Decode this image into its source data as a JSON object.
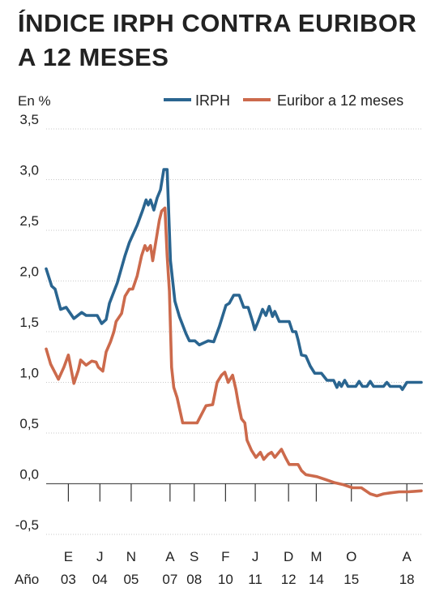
{
  "chart_data": {
    "type": "line",
    "title": "ÍNDICE IRPH CONTRA EURIBOR A 12 MESES",
    "ylabel": "En %",
    "xlabel": "Año",
    "ylim": [
      -0.5,
      3.5
    ],
    "xlim": [
      2002.0,
      2018.9
    ],
    "yticks": [
      {
        "value": 3.5,
        "label": "3,5"
      },
      {
        "value": 3.0,
        "label": "3,0"
      },
      {
        "value": 2.5,
        "label": "2,5"
      },
      {
        "value": 2.0,
        "label": "2,0"
      },
      {
        "value": 1.5,
        "label": "1,5"
      },
      {
        "value": 1.0,
        "label": "1,0"
      },
      {
        "value": 0.5,
        "label": "0,5"
      },
      {
        "value": 0.0,
        "label": "0,0"
      },
      {
        "value": -0.5,
        "label": "-0,5"
      }
    ],
    "xticks": [
      {
        "x": 2003.0,
        "month": "E",
        "year": "03"
      },
      {
        "x": 2004.42,
        "month": "J",
        "year": "04"
      },
      {
        "x": 2005.83,
        "month": "N",
        "year": "05"
      },
      {
        "x": 2007.58,
        "month": "A",
        "year": "07"
      },
      {
        "x": 2008.67,
        "month": "S",
        "year": "08"
      },
      {
        "x": 2010.08,
        "month": "F",
        "year": "10"
      },
      {
        "x": 2011.42,
        "month": "J",
        "year": "11"
      },
      {
        "x": 2012.92,
        "month": "D",
        "year": "12"
      },
      {
        "x": 2014.17,
        "month": "M",
        "year": "14"
      },
      {
        "x": 2015.75,
        "month": "O",
        "year": "15"
      },
      {
        "x": 2018.25,
        "month": "A",
        "year": "18"
      }
    ],
    "grid": "horizontal",
    "legend": "top-right",
    "series": [
      {
        "name": "IRPH",
        "color": "#2a6590",
        "points": [
          [
            2002.0,
            2.12
          ],
          [
            2002.25,
            1.95
          ],
          [
            2002.4,
            1.92
          ],
          [
            2002.65,
            1.72
          ],
          [
            2002.9,
            1.74
          ],
          [
            2003.25,
            1.63
          ],
          [
            2003.6,
            1.69
          ],
          [
            2003.8,
            1.66
          ],
          [
            2004.0,
            1.66
          ],
          [
            2004.3,
            1.66
          ],
          [
            2004.5,
            1.58
          ],
          [
            2004.7,
            1.62
          ],
          [
            2004.85,
            1.78
          ],
          [
            2005.2,
            1.98
          ],
          [
            2005.55,
            2.25
          ],
          [
            2005.75,
            2.38
          ],
          [
            2006.1,
            2.55
          ],
          [
            2006.35,
            2.7
          ],
          [
            2006.5,
            2.8
          ],
          [
            2006.6,
            2.75
          ],
          [
            2006.7,
            2.8
          ],
          [
            2006.85,
            2.7
          ],
          [
            2007.0,
            2.82
          ],
          [
            2007.15,
            2.9
          ],
          [
            2007.3,
            3.1
          ],
          [
            2007.45,
            3.1
          ],
          [
            2007.6,
            2.2
          ],
          [
            2007.8,
            1.8
          ],
          [
            2008.0,
            1.65
          ],
          [
            2008.3,
            1.48
          ],
          [
            2008.45,
            1.41
          ],
          [
            2008.7,
            1.41
          ],
          [
            2008.9,
            1.37
          ],
          [
            2009.3,
            1.41
          ],
          [
            2009.55,
            1.4
          ],
          [
            2009.8,
            1.55
          ],
          [
            2010.1,
            1.76
          ],
          [
            2010.25,
            1.78
          ],
          [
            2010.45,
            1.86
          ],
          [
            2010.7,
            1.86
          ],
          [
            2010.9,
            1.74
          ],
          [
            2011.1,
            1.74
          ],
          [
            2011.3,
            1.6
          ],
          [
            2011.4,
            1.52
          ],
          [
            2011.55,
            1.6
          ],
          [
            2011.75,
            1.72
          ],
          [
            2011.9,
            1.66
          ],
          [
            2012.05,
            1.75
          ],
          [
            2012.2,
            1.65
          ],
          [
            2012.3,
            1.7
          ],
          [
            2012.5,
            1.6
          ],
          [
            2012.65,
            1.6
          ],
          [
            2012.95,
            1.6
          ],
          [
            2013.1,
            1.5
          ],
          [
            2013.25,
            1.5
          ],
          [
            2013.35,
            1.42
          ],
          [
            2013.5,
            1.27
          ],
          [
            2013.7,
            1.26
          ],
          [
            2013.9,
            1.16
          ],
          [
            2014.1,
            1.09
          ],
          [
            2014.4,
            1.09
          ],
          [
            2014.65,
            1.02
          ],
          [
            2014.95,
            1.02
          ],
          [
            2015.1,
            0.95
          ],
          [
            2015.2,
            1.0
          ],
          [
            2015.3,
            0.96
          ],
          [
            2015.45,
            1.02
          ],
          [
            2015.6,
            0.96
          ],
          [
            2015.8,
            0.96
          ],
          [
            2015.95,
            0.96
          ],
          [
            2016.1,
            1.01
          ],
          [
            2016.25,
            0.96
          ],
          [
            2016.45,
            0.96
          ],
          [
            2016.6,
            1.01
          ],
          [
            2016.75,
            0.96
          ],
          [
            2017.0,
            0.96
          ],
          [
            2017.2,
            0.96
          ],
          [
            2017.35,
            1.0
          ],
          [
            2017.5,
            0.96
          ],
          [
            2017.75,
            0.96
          ],
          [
            2017.95,
            0.96
          ],
          [
            2018.05,
            0.93
          ],
          [
            2018.25,
            1.0
          ],
          [
            2018.9,
            1.0
          ]
        ]
      },
      {
        "name": "Euribor a 12 meses",
        "color": "#cc6a4c",
        "points": [
          [
            2002.0,
            1.33
          ],
          [
            2002.2,
            1.18
          ],
          [
            2002.55,
            1.03
          ],
          [
            2002.8,
            1.15
          ],
          [
            2003.0,
            1.27
          ],
          [
            2003.25,
            0.99
          ],
          [
            2003.45,
            1.12
          ],
          [
            2003.55,
            1.22
          ],
          [
            2003.8,
            1.17
          ],
          [
            2004.05,
            1.21
          ],
          [
            2004.25,
            1.2
          ],
          [
            2004.35,
            1.15
          ],
          [
            2004.55,
            1.11
          ],
          [
            2004.7,
            1.3
          ],
          [
            2004.9,
            1.4
          ],
          [
            2005.05,
            1.5
          ],
          [
            2005.15,
            1.6
          ],
          [
            2005.4,
            1.68
          ],
          [
            2005.55,
            1.85
          ],
          [
            2005.75,
            1.92
          ],
          [
            2005.9,
            1.92
          ],
          [
            2006.1,
            2.05
          ],
          [
            2006.3,
            2.25
          ],
          [
            2006.45,
            2.35
          ],
          [
            2006.55,
            2.3
          ],
          [
            2006.7,
            2.35
          ],
          [
            2006.8,
            2.2
          ],
          [
            2006.95,
            2.4
          ],
          [
            2007.1,
            2.6
          ],
          [
            2007.2,
            2.69
          ],
          [
            2007.35,
            2.72
          ],
          [
            2007.45,
            2.25
          ],
          [
            2007.55,
            1.9
          ],
          [
            2007.65,
            1.15
          ],
          [
            2007.75,
            0.95
          ],
          [
            2007.9,
            0.85
          ],
          [
            2008.15,
            0.6
          ],
          [
            2008.5,
            0.6
          ],
          [
            2008.8,
            0.6
          ],
          [
            2009.2,
            0.77
          ],
          [
            2009.5,
            0.78
          ],
          [
            2009.7,
            1.0
          ],
          [
            2009.9,
            1.07
          ],
          [
            2010.05,
            1.1
          ],
          [
            2010.2,
            1.0
          ],
          [
            2010.4,
            1.07
          ],
          [
            2010.55,
            0.93
          ],
          [
            2010.65,
            0.8
          ],
          [
            2010.8,
            0.64
          ],
          [
            2010.95,
            0.6
          ],
          [
            2011.05,
            0.43
          ],
          [
            2011.25,
            0.33
          ],
          [
            2011.45,
            0.26
          ],
          [
            2011.65,
            0.31
          ],
          [
            2011.8,
            0.24
          ],
          [
            2012.0,
            0.29
          ],
          [
            2012.15,
            0.31
          ],
          [
            2012.3,
            0.26
          ],
          [
            2012.6,
            0.34
          ],
          [
            2012.8,
            0.25
          ],
          [
            2012.95,
            0.19
          ],
          [
            2013.15,
            0.19
          ],
          [
            2013.35,
            0.19
          ],
          [
            2013.5,
            0.13
          ],
          [
            2013.7,
            0.09
          ],
          [
            2014.2,
            0.07
          ],
          [
            2014.6,
            0.04
          ],
          [
            2015.0,
            0.01
          ],
          [
            2015.4,
            -0.01
          ],
          [
            2015.8,
            -0.04
          ],
          [
            2016.2,
            -0.04
          ],
          [
            2016.6,
            -0.1
          ],
          [
            2016.9,
            -0.12
          ],
          [
            2017.2,
            -0.1
          ],
          [
            2017.5,
            -0.09
          ],
          [
            2017.9,
            -0.08
          ],
          [
            2018.3,
            -0.08
          ],
          [
            2018.9,
            -0.07
          ]
        ]
      }
    ]
  }
}
